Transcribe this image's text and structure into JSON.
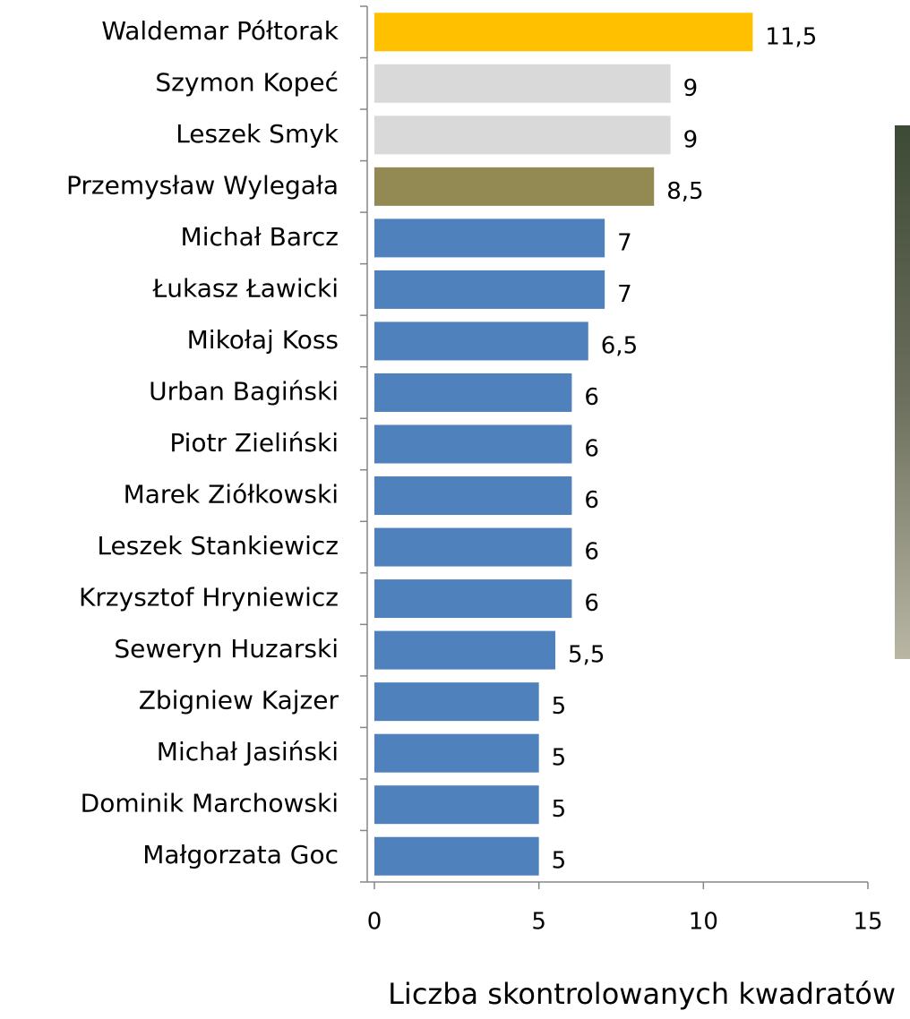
{
  "chart_data": {
    "type": "bar",
    "orientation": "horizontal",
    "categories": [
      "Waldemar Półtorak",
      "Szymon Kopeć",
      "Leszek Smyk",
      "Przemysław Wylegała",
      "Michał Barcz",
      "Łukasz Ławicki",
      "Mikołaj Koss",
      "Urban Bagiński",
      "Piotr Zieliński",
      "Marek Ziółkowski",
      "Leszek Stankiewicz",
      "Krzysztof Hryniewicz",
      "Seweryn Huzarski",
      "Zbigniew Kajzer",
      "Michał Jasiński",
      "Dominik Marchowski",
      "Małgorzata Goc"
    ],
    "values": [
      11.5,
      9,
      9,
      8.5,
      7,
      7,
      6.5,
      6,
      6,
      6,
      6,
      6,
      5.5,
      5,
      5,
      5,
      5
    ],
    "value_labels": [
      "11,5",
      "9",
      "9",
      "8,5",
      "7",
      "7",
      "6,5",
      "6",
      "6",
      "6",
      "6",
      "6",
      "5,5",
      "5",
      "5",
      "5",
      "5"
    ],
    "colors": [
      "#ffc000",
      "#d9d9d9",
      "#d9d9d9",
      "#938953",
      "#4f81bd",
      "#4f81bd",
      "#4f81bd",
      "#4f81bd",
      "#4f81bd",
      "#4f81bd",
      "#4f81bd",
      "#4f81bd",
      "#4f81bd",
      "#4f81bd",
      "#4f81bd",
      "#4f81bd",
      "#4f81bd"
    ],
    "xlim": [
      0,
      15
    ],
    "xticks": [
      0,
      5,
      10,
      15
    ],
    "xlabel": "Liczba skontrolowanych kwadratów"
  }
}
